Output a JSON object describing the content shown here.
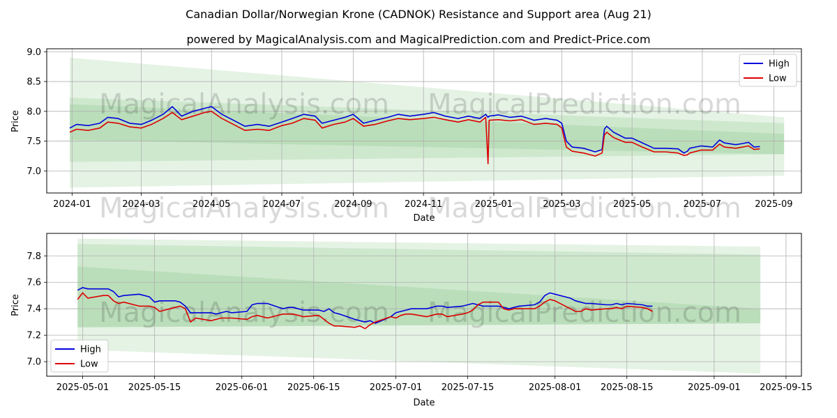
{
  "title": "Canadian Dollar/Norwegian Krone (CADNOK) Resistance and Support area (Aug 21)",
  "subtitle": "powered by MagicalAnalysis.com and MagicalPrediction.com and Predict-Price.com",
  "watermarks": [
    "MagicalAnalysis.com",
    "MagicalPrediction.com"
  ],
  "colors": {
    "high": "#0000dd",
    "low": "#dd0000",
    "band": "#2ca02c"
  },
  "chart_data": [
    {
      "type": "line",
      "xlabel": "Date",
      "ylabel": "Price",
      "xlim": [
        "2023-12-10",
        "2025-09-25"
      ],
      "ylim": [
        6.63,
        9.05
      ],
      "x_ticks": [
        "2024-01-01",
        "2024-03-01",
        "2024-05-01",
        "2024-07-01",
        "2024-09-01",
        "2024-11-01",
        "2025-01-01",
        "2025-03-01",
        "2025-05-01",
        "2025-07-01",
        "2025-09-01"
      ],
      "x_tick_labels": [
        "2024-01",
        "2024-03",
        "2024-05",
        "2024-07",
        "2024-09",
        "2024-11",
        "2025-01",
        "2025-03",
        "2025-05",
        "2025-07",
        "2025-09"
      ],
      "y_ticks": [
        7.0,
        7.5,
        8.0,
        8.5,
        9.0
      ],
      "y_tick_labels": [
        "7.0",
        "7.5",
        "8.0",
        "8.5",
        "9.0"
      ],
      "grid": true,
      "legend": "upper right",
      "bands": [
        {
          "start": "2023-12-30",
          "end": "2025-09-10",
          "upper": [
            8.9,
            7.9
          ],
          "lower": [
            6.72,
            6.92
          ]
        },
        {
          "start": "2023-12-30",
          "end": "2025-09-10",
          "upper": [
            8.23,
            7.8
          ],
          "lower": [
            7.15,
            7.28
          ]
        },
        {
          "start": "2023-12-30",
          "end": "2025-09-10",
          "upper": [
            8.12,
            7.62
          ],
          "lower": [
            7.52,
            7.28
          ]
        }
      ],
      "series": [
        {
          "name": "High",
          "x": [
            "2023-12-30",
            "2024-01-05",
            "2024-01-15",
            "2024-01-25",
            "2024-02-01",
            "2024-02-10",
            "2024-02-20",
            "2024-03-01",
            "2024-03-10",
            "2024-03-20",
            "2024-03-28",
            "2024-04-05",
            "2024-04-15",
            "2024-04-25",
            "2024-05-01",
            "2024-05-10",
            "2024-05-20",
            "2024-05-30",
            "2024-06-10",
            "2024-06-20",
            "2024-07-01",
            "2024-07-10",
            "2024-07-20",
            "2024-07-30",
            "2024-08-05",
            "2024-08-15",
            "2024-08-25",
            "2024-09-01",
            "2024-09-10",
            "2024-09-20",
            "2024-10-01",
            "2024-10-10",
            "2024-10-20",
            "2024-11-01",
            "2024-11-10",
            "2024-11-20",
            "2024-12-01",
            "2024-12-10",
            "2024-12-20",
            "2024-12-25",
            "2024-12-27",
            "2024-12-28",
            "2025-01-05",
            "2025-01-15",
            "2025-01-25",
            "2025-02-05",
            "2025-02-15",
            "2025-02-25",
            "2025-03-01",
            "2025-03-05",
            "2025-03-10",
            "2025-03-20",
            "2025-03-30",
            "2025-04-05",
            "2025-04-07",
            "2025-04-09",
            "2025-04-15",
            "2025-04-25",
            "2025-05-01",
            "2025-05-10",
            "2025-05-20",
            "2025-05-30",
            "2025-06-10",
            "2025-06-15",
            "2025-06-18",
            "2025-06-20",
            "2025-06-30",
            "2025-07-10",
            "2025-07-16",
            "2025-07-20",
            "2025-07-30",
            "2025-08-05",
            "2025-08-10",
            "2025-08-15",
            "2025-08-20"
          ],
          "values": [
            7.72,
            7.78,
            7.76,
            7.8,
            7.9,
            7.88,
            7.8,
            7.78,
            7.85,
            7.95,
            8.08,
            7.92,
            8.0,
            8.05,
            8.08,
            7.95,
            7.85,
            7.75,
            7.78,
            7.75,
            7.82,
            7.88,
            7.95,
            7.92,
            7.8,
            7.85,
            7.9,
            7.95,
            7.8,
            7.85,
            7.9,
            7.95,
            7.92,
            7.95,
            7.98,
            7.92,
            7.88,
            7.92,
            7.88,
            7.95,
            7.9,
            7.92,
            7.94,
            7.9,
            7.92,
            7.85,
            7.88,
            7.85,
            7.8,
            7.5,
            7.4,
            7.38,
            7.32,
            7.36,
            7.7,
            7.75,
            7.65,
            7.55,
            7.55,
            7.47,
            7.38,
            7.38,
            7.37,
            7.3,
            7.33,
            7.38,
            7.42,
            7.4,
            7.52,
            7.47,
            7.44,
            7.46,
            7.48,
            7.4,
            7.41
          ]
        },
        {
          "name": "Low",
          "x": [
            "2023-12-30",
            "2024-01-05",
            "2024-01-15",
            "2024-01-25",
            "2024-02-01",
            "2024-02-10",
            "2024-02-20",
            "2024-03-01",
            "2024-03-10",
            "2024-03-20",
            "2024-03-28",
            "2024-04-05",
            "2024-04-15",
            "2024-04-25",
            "2024-05-01",
            "2024-05-10",
            "2024-05-20",
            "2024-05-30",
            "2024-06-10",
            "2024-06-20",
            "2024-07-01",
            "2024-07-10",
            "2024-07-20",
            "2024-07-30",
            "2024-08-05",
            "2024-08-15",
            "2024-08-25",
            "2024-09-01",
            "2024-09-10",
            "2024-09-20",
            "2024-10-01",
            "2024-10-10",
            "2024-10-20",
            "2024-11-01",
            "2024-11-10",
            "2024-11-20",
            "2024-12-01",
            "2024-12-10",
            "2024-12-20",
            "2024-12-25",
            "2024-12-27",
            "2024-12-28",
            "2025-01-05",
            "2025-01-15",
            "2025-01-25",
            "2025-02-05",
            "2025-02-15",
            "2025-02-25",
            "2025-03-01",
            "2025-03-05",
            "2025-03-10",
            "2025-03-20",
            "2025-03-30",
            "2025-04-05",
            "2025-04-07",
            "2025-04-09",
            "2025-04-15",
            "2025-04-25",
            "2025-05-01",
            "2025-05-10",
            "2025-05-20",
            "2025-05-30",
            "2025-06-10",
            "2025-06-15",
            "2025-06-18",
            "2025-06-20",
            "2025-06-30",
            "2025-07-10",
            "2025-07-16",
            "2025-07-20",
            "2025-07-30",
            "2025-08-05",
            "2025-08-10",
            "2025-08-15",
            "2025-08-20"
          ],
          "values": [
            7.65,
            7.7,
            7.68,
            7.72,
            7.82,
            7.8,
            7.74,
            7.72,
            7.78,
            7.88,
            7.98,
            7.86,
            7.92,
            7.98,
            8.0,
            7.88,
            7.78,
            7.68,
            7.7,
            7.68,
            7.76,
            7.8,
            7.88,
            7.85,
            7.72,
            7.78,
            7.82,
            7.88,
            7.75,
            7.78,
            7.84,
            7.88,
            7.86,
            7.88,
            7.9,
            7.86,
            7.82,
            7.86,
            7.82,
            7.9,
            7.12,
            7.85,
            7.86,
            7.84,
            7.86,
            7.78,
            7.8,
            7.78,
            7.72,
            7.4,
            7.33,
            7.3,
            7.25,
            7.3,
            7.6,
            7.65,
            7.56,
            7.48,
            7.48,
            7.4,
            7.32,
            7.32,
            7.3,
            7.26,
            7.27,
            7.3,
            7.35,
            7.35,
            7.45,
            7.4,
            7.38,
            7.4,
            7.42,
            7.36,
            7.37
          ]
        }
      ]
    },
    {
      "type": "line",
      "xlabel": "Date",
      "ylabel": "Price",
      "xlim": [
        "2025-04-24",
        "2025-09-18"
      ],
      "ylim": [
        6.89,
        7.97
      ],
      "x_ticks": [
        "2025-05-01",
        "2025-05-15",
        "2025-06-01",
        "2025-06-15",
        "2025-07-01",
        "2025-07-15",
        "2025-08-01",
        "2025-08-15",
        "2025-09-01",
        "2025-09-15"
      ],
      "x_tick_labels": [
        "2025-05-01",
        "2025-05-15",
        "2025-06-01",
        "2025-06-15",
        "2025-07-01",
        "2025-07-15",
        "2025-08-01",
        "2025-08-15",
        "2025-09-01",
        "2025-09-15"
      ],
      "y_ticks": [
        7.0,
        7.2,
        7.4,
        7.6,
        7.8
      ],
      "y_tick_labels": [
        "7.0",
        "7.2",
        "7.4",
        "7.6",
        "7.8"
      ],
      "grid": true,
      "legend": "lower left",
      "bands": [
        {
          "start": "2025-04-30",
          "end": "2025-09-10",
          "upper": [
            7.93,
            7.87
          ],
          "lower": [
            7.09,
            6.91
          ]
        },
        {
          "start": "2025-04-30",
          "end": "2025-09-10",
          "upper": [
            7.89,
            7.81
          ],
          "lower": [
            7.26,
            7.29
          ]
        },
        {
          "start": "2025-04-30",
          "end": "2025-09-10",
          "upper": [
            7.72,
            7.4
          ],
          "lower": [
            7.26,
            7.29
          ]
        }
      ],
      "series": [
        {
          "name": "High",
          "x": [
            "2025-04-30",
            "2025-05-01",
            "2025-05-02",
            "2025-05-05",
            "2025-05-06",
            "2025-05-07",
            "2025-05-08",
            "2025-05-09",
            "2025-05-12",
            "2025-05-13",
            "2025-05-14",
            "2025-05-15",
            "2025-05-16",
            "2025-05-19",
            "2025-05-20",
            "2025-05-21",
            "2025-05-22",
            "2025-05-23",
            "2025-05-26",
            "2025-05-27",
            "2025-05-28",
            "2025-05-29",
            "2025-05-30",
            "2025-06-02",
            "2025-06-03",
            "2025-06-04",
            "2025-06-05",
            "2025-06-06",
            "2025-06-09",
            "2025-06-10",
            "2025-06-11",
            "2025-06-12",
            "2025-06-13",
            "2025-06-16",
            "2025-06-17",
            "2025-06-18",
            "2025-06-19",
            "2025-06-20",
            "2025-06-23",
            "2025-06-24",
            "2025-06-25",
            "2025-06-26",
            "2025-06-27",
            "2025-06-30",
            "2025-07-01",
            "2025-07-02",
            "2025-07-03",
            "2025-07-04",
            "2025-07-07",
            "2025-07-08",
            "2025-07-09",
            "2025-07-10",
            "2025-07-11",
            "2025-07-14",
            "2025-07-15",
            "2025-07-16",
            "2025-07-17",
            "2025-07-18",
            "2025-07-21",
            "2025-07-22",
            "2025-07-23",
            "2025-07-24",
            "2025-07-25",
            "2025-07-28",
            "2025-07-29",
            "2025-07-30",
            "2025-07-31",
            "2025-08-01",
            "2025-08-04",
            "2025-08-05",
            "2025-08-06",
            "2025-08-07",
            "2025-08-08",
            "2025-08-11",
            "2025-08-12",
            "2025-08-13",
            "2025-08-14",
            "2025-08-15",
            "2025-08-18",
            "2025-08-19",
            "2025-08-20"
          ],
          "values": [
            7.54,
            7.56,
            7.55,
            7.55,
            7.55,
            7.53,
            7.49,
            7.5,
            7.51,
            7.5,
            7.49,
            7.45,
            7.46,
            7.46,
            7.45,
            7.42,
            7.37,
            7.37,
            7.37,
            7.36,
            7.37,
            7.38,
            7.37,
            7.38,
            7.43,
            7.44,
            7.44,
            7.44,
            7.4,
            7.41,
            7.41,
            7.4,
            7.39,
            7.39,
            7.38,
            7.4,
            7.37,
            7.36,
            7.32,
            7.31,
            7.3,
            7.31,
            7.29,
            7.34,
            7.37,
            7.38,
            7.39,
            7.4,
            7.4,
            7.41,
            7.42,
            7.42,
            7.41,
            7.42,
            7.43,
            7.44,
            7.43,
            7.42,
            7.42,
            7.41,
            7.4,
            7.41,
            7.42,
            7.43,
            7.45,
            7.5,
            7.52,
            7.51,
            7.48,
            7.46,
            7.45,
            7.44,
            7.44,
            7.43,
            7.43,
            7.44,
            7.43,
            7.44,
            7.43,
            7.42,
            7.42
          ]
        },
        {
          "name": "Low",
          "x": [
            "2025-04-30",
            "2025-05-01",
            "2025-05-02",
            "2025-05-05",
            "2025-05-06",
            "2025-05-07",
            "2025-05-08",
            "2025-05-09",
            "2025-05-12",
            "2025-05-13",
            "2025-05-14",
            "2025-05-15",
            "2025-05-16",
            "2025-05-19",
            "2025-05-20",
            "2025-05-21",
            "2025-05-22",
            "2025-05-23",
            "2025-05-26",
            "2025-05-27",
            "2025-05-28",
            "2025-05-29",
            "2025-05-30",
            "2025-06-02",
            "2025-06-03",
            "2025-06-04",
            "2025-06-05",
            "2025-06-06",
            "2025-06-09",
            "2025-06-10",
            "2025-06-11",
            "2025-06-12",
            "2025-06-13",
            "2025-06-16",
            "2025-06-17",
            "2025-06-18",
            "2025-06-19",
            "2025-06-20",
            "2025-06-23",
            "2025-06-24",
            "2025-06-25",
            "2025-06-26",
            "2025-06-27",
            "2025-06-30",
            "2025-07-01",
            "2025-07-02",
            "2025-07-03",
            "2025-07-04",
            "2025-07-07",
            "2025-07-08",
            "2025-07-09",
            "2025-07-10",
            "2025-07-11",
            "2025-07-14",
            "2025-07-15",
            "2025-07-16",
            "2025-07-17",
            "2025-07-18",
            "2025-07-21",
            "2025-07-22",
            "2025-07-23",
            "2025-07-24",
            "2025-07-25",
            "2025-07-28",
            "2025-07-29",
            "2025-07-30",
            "2025-07-31",
            "2025-08-01",
            "2025-08-04",
            "2025-08-05",
            "2025-08-06",
            "2025-08-07",
            "2025-08-08",
            "2025-08-11",
            "2025-08-12",
            "2025-08-13",
            "2025-08-14",
            "2025-08-15",
            "2025-08-18",
            "2025-08-19",
            "2025-08-20"
          ],
          "values": [
            7.47,
            7.52,
            7.48,
            7.5,
            7.5,
            7.46,
            7.44,
            7.45,
            7.42,
            7.42,
            7.42,
            7.41,
            7.38,
            7.41,
            7.42,
            7.4,
            7.3,
            7.33,
            7.31,
            7.32,
            7.33,
            7.33,
            7.33,
            7.32,
            7.34,
            7.35,
            7.34,
            7.33,
            7.36,
            7.36,
            7.36,
            7.35,
            7.34,
            7.35,
            7.32,
            7.29,
            7.27,
            7.27,
            7.26,
            7.27,
            7.25,
            7.28,
            7.3,
            7.34,
            7.33,
            7.35,
            7.36,
            7.36,
            7.34,
            7.35,
            7.36,
            7.36,
            7.34,
            7.36,
            7.37,
            7.39,
            7.43,
            7.45,
            7.45,
            7.4,
            7.39,
            7.4,
            7.4,
            7.4,
            7.42,
            7.45,
            7.47,
            7.46,
            7.4,
            7.38,
            7.38,
            7.4,
            7.39,
            7.4,
            7.4,
            7.41,
            7.4,
            7.42,
            7.41,
            7.4,
            7.38
          ]
        }
      ]
    }
  ]
}
